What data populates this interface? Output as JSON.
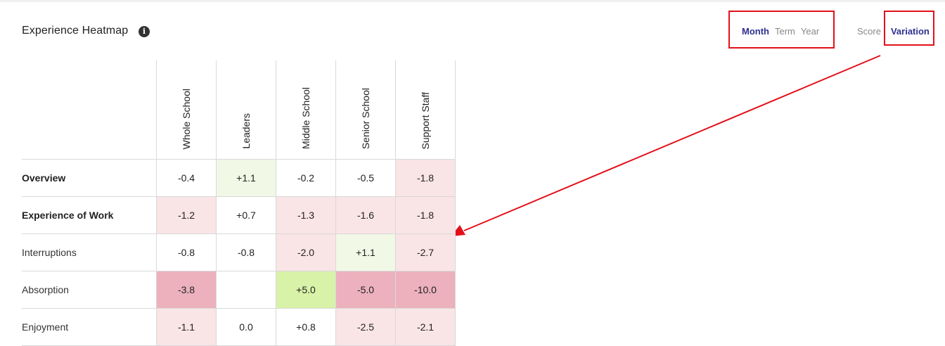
{
  "header": {
    "title": "Experience Heatmap",
    "info_icon": "info-icon"
  },
  "period_toggle": [
    {
      "label": "Month",
      "active": true
    },
    {
      "label": "Term",
      "active": false
    },
    {
      "label": "Year",
      "active": false
    }
  ],
  "view_toggle": [
    {
      "label": "Score",
      "active": false
    },
    {
      "label": "Variation",
      "active": true
    }
  ],
  "colors": {
    "accent": "#2f2f8f",
    "highlight": "#e3101a",
    "neg_light": "#f9e4e6",
    "neg_strong": "#ecb1bd",
    "pos_light": "#f1f8e6",
    "pos_strong": "#d8f2a8"
  },
  "heatmap": {
    "columns": [
      "Whole School",
      "Leaders",
      "Middle School",
      "Senior School",
      "Support Staff"
    ],
    "rows": [
      {
        "label": "Overview",
        "bold": true,
        "values": [
          "-0.4",
          "+1.1",
          "-0.2",
          "-0.5",
          "-1.8"
        ],
        "tone": [
          "",
          "pos_light",
          "",
          "",
          "neg_light"
        ]
      },
      {
        "label": "Experience of Work",
        "bold": true,
        "values": [
          "-1.2",
          "+0.7",
          "-1.3",
          "-1.6",
          "-1.8"
        ],
        "tone": [
          "neg_light",
          "",
          "neg_light",
          "neg_light",
          "neg_light"
        ]
      },
      {
        "label": "Interruptions",
        "bold": false,
        "values": [
          "-0.8",
          "-0.8",
          "-2.0",
          "+1.1",
          "-2.7"
        ],
        "tone": [
          "",
          "",
          "neg_light",
          "pos_light",
          "neg_light"
        ]
      },
      {
        "label": "Absorption",
        "bold": false,
        "values": [
          "-3.8",
          "",
          "+5.0",
          "-5.0",
          "-10.0"
        ],
        "tone": [
          "neg_strong",
          "",
          "pos_strong",
          "neg_strong",
          "neg_strong"
        ]
      },
      {
        "label": "Enjoyment",
        "bold": false,
        "values": [
          "-1.1",
          "0.0",
          "+0.8",
          "-2.5",
          "-2.1"
        ],
        "tone": [
          "neg_light",
          "",
          "",
          "neg_light",
          "neg_light"
        ]
      }
    ]
  }
}
